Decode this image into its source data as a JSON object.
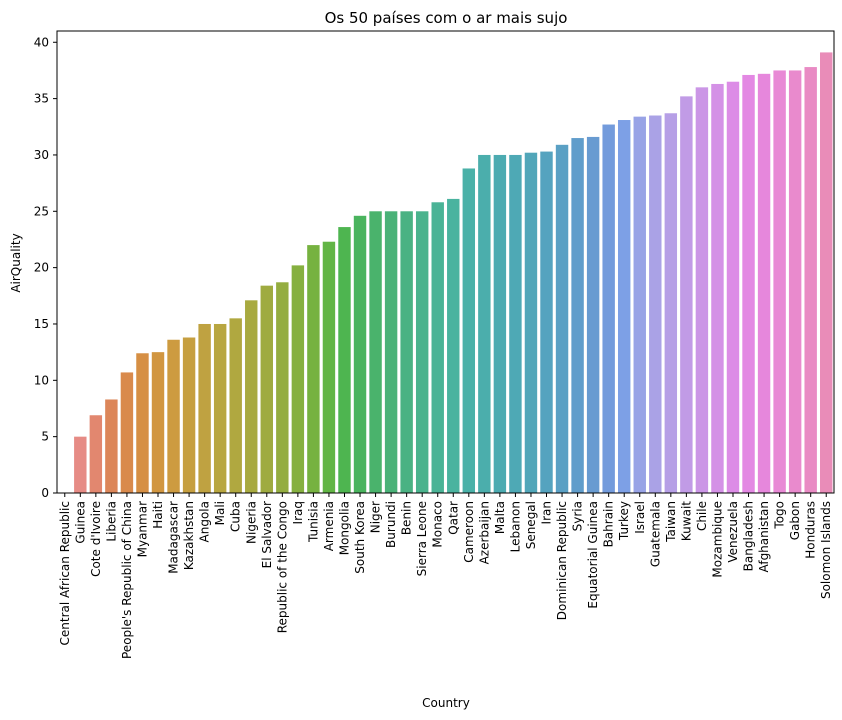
{
  "chart_data": {
    "type": "bar",
    "title": "Os 50 países com o ar mais sujo",
    "xlabel": "Country",
    "ylabel": "AirQuality",
    "ylim": [
      0,
      41
    ],
    "yticks": [
      0,
      5,
      10,
      15,
      20,
      25,
      30,
      35,
      40
    ],
    "grid": false,
    "categories": [
      "Central African Republic",
      "Guinea",
      "Cote d'Ivoire",
      "Liberia",
      "People's Republic of China",
      "Myanmar",
      "Haiti",
      "Madagascar",
      "Kazakhstan",
      "Angola",
      "Mali",
      "Cuba",
      "Nigeria",
      "El Salvador",
      "Republic of the Congo",
      "Iraq",
      "Tunisia",
      "Armenia",
      "Mongolia",
      "South Korea",
      "Niger",
      "Burundi",
      "Benin",
      "Sierra Leone",
      "Monaco",
      "Qatar",
      "Cameroon",
      "Azerbaijan",
      "Malta",
      "Lebanon",
      "Senegal",
      "Iran",
      "Dominican Republic",
      "Syria",
      "Equatorial Guinea",
      "Bahrain",
      "Turkey",
      "Israel",
      "Guatemala",
      "Taiwan",
      "Kuwait",
      "Chile",
      "Mozambique",
      "Venezuela",
      "Bangladesh",
      "Afghanistan",
      "Togo",
      "Gabon",
      "Honduras",
      "Solomon Islands"
    ],
    "values": [
      0.0,
      5.0,
      6.9,
      8.3,
      10.7,
      12.4,
      12.5,
      13.6,
      13.8,
      15.0,
      15.0,
      15.5,
      17.1,
      18.4,
      18.7,
      20.2,
      22.0,
      22.3,
      23.6,
      24.6,
      25.0,
      25.0,
      25.0,
      25.0,
      25.8,
      26.1,
      28.8,
      30.0,
      30.0,
      30.0,
      30.2,
      30.3,
      30.9,
      31.5,
      31.6,
      32.7,
      33.1,
      33.4,
      33.5,
      33.7,
      35.2,
      36.0,
      36.3,
      36.5,
      37.1,
      37.2,
      37.5,
      37.5,
      37.8,
      39.1
    ],
    "colors": [
      "#e88e8e",
      "#e68b85",
      "#e2876f",
      "#dc8659",
      "#d98a4c",
      "#d68f44",
      "#d19640",
      "#cd9b40",
      "#c69f40",
      "#bfa241",
      "#b8a640",
      "#b0a840",
      "#a8aa40",
      "#9fab40",
      "#94ad40",
      "#86b040",
      "#76b240",
      "#62b545",
      "#4eb550",
      "#4ab45e",
      "#4ab36c",
      "#4ab278",
      "#4ab283",
      "#4ab38d",
      "#4ab396",
      "#4ab39f",
      "#4ab1a8",
      "#4baeac",
      "#4cabb1",
      "#4ea9b5",
      "#51a6b9",
      "#55a3bf",
      "#5aa0c4",
      "#609dcb",
      "#689bd1",
      "#739bdc",
      "#7da0e6",
      "#98a3e6",
      "#aaa2e6",
      "#b69fe6",
      "#c19be6",
      "#cb96e6",
      "#d491e6",
      "#dc8ce6",
      "#e388e3",
      "#e687dc",
      "#e889d5",
      "#e98acd",
      "#e98bc4",
      "#e98cb8"
    ]
  }
}
